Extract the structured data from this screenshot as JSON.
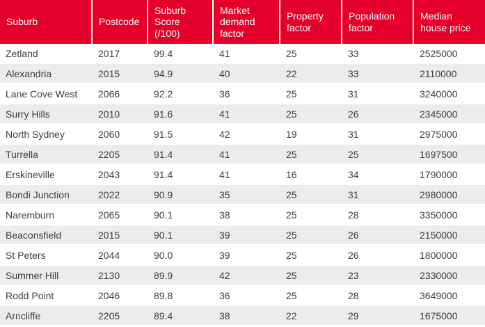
{
  "colors": {
    "header_bg": "#E4002B",
    "header_text": "#FFFFFF",
    "row_alt_bg": "#ECECEC",
    "row_bg": "#FFFFFF",
    "body_text": "#3D3D3D"
  },
  "chart_data": {
    "type": "table",
    "title": "",
    "columns": [
      "Suburb",
      "Postcode",
      "Suburb Score (/100)",
      "Market demand factor",
      "Property factor",
      "Population factor",
      "Median house price"
    ],
    "rows": [
      [
        "Zetland",
        "2017",
        "99.4",
        "41",
        "25",
        "33",
        "2525000"
      ],
      [
        "Alexandria",
        "2015",
        "94.9",
        "40",
        "22",
        "33",
        "2110000"
      ],
      [
        "Lane Cove West",
        "2066",
        "92.2",
        "36",
        "25",
        "31",
        "3240000"
      ],
      [
        "Surry Hills",
        "2010",
        "91.6",
        "41",
        "25",
        "26",
        "2345000"
      ],
      [
        "North Sydney",
        "2060",
        "91.5",
        "42",
        "19",
        "31",
        "2975000"
      ],
      [
        "Turrella",
        "2205",
        "91.4",
        "41",
        "25",
        "25",
        "1697500"
      ],
      [
        "Erskineville",
        "2043",
        "91.4",
        "41",
        "16",
        "34",
        "1790000"
      ],
      [
        "Bondi Junction",
        "2022",
        "90.9",
        "35",
        "25",
        "31",
        "2980000"
      ],
      [
        "Naremburn",
        "2065",
        "90.1",
        "38",
        "25",
        "28",
        "3350000"
      ],
      [
        "Beaconsfield",
        "2015",
        "90.1",
        "39",
        "25",
        "26",
        "2150000"
      ],
      [
        "St Peters",
        "2044",
        "90.0",
        "39",
        "25",
        "26",
        "1800000"
      ],
      [
        "Summer Hill",
        "2130",
        "89.9",
        "42",
        "25",
        "23",
        "2330000"
      ],
      [
        "Rodd Point",
        "2046",
        "89.8",
        "36",
        "25",
        "28",
        "3649000"
      ],
      [
        "Arncliffe",
        "2205",
        "89.4",
        "38",
        "22",
        "29",
        "1675000"
      ]
    ]
  }
}
